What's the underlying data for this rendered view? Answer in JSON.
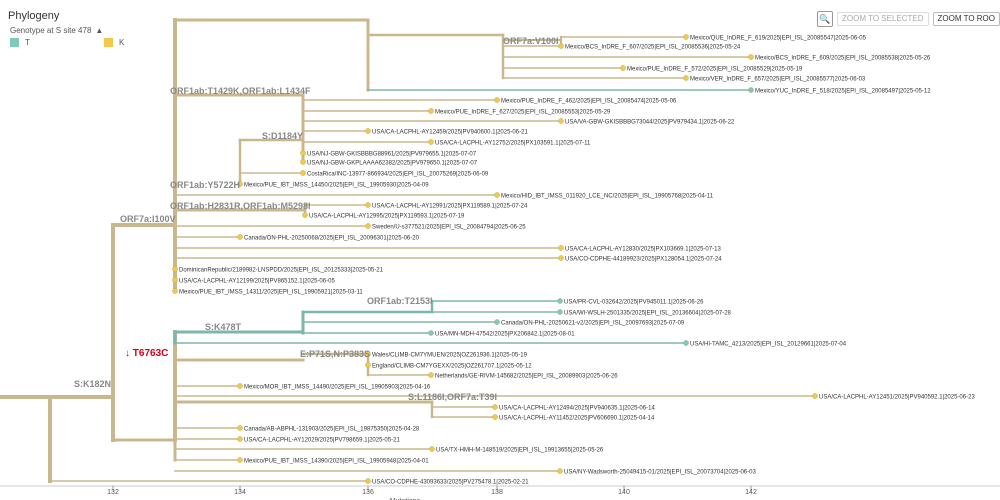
{
  "app": {
    "title": "Phylogeny"
  },
  "toolbar": {
    "zoom_selected": "ZOOM TO SELECTED",
    "zoom_root": "ZOOM TO ROO"
  },
  "legend": {
    "title": "Genotype at S site 478",
    "items": [
      {
        "label": "T",
        "color": "#7fc9ba"
      },
      {
        "label": "K",
        "color": "#f2c94c"
      }
    ]
  },
  "colors": {
    "branch": "#c9b88e",
    "branch_T": "#7fb6ac",
    "tip_K": "#f2c94c",
    "tip_T": "#7fc9ba",
    "mutation_red": "#d0021b"
  },
  "axis": {
    "ticks": [
      "132",
      "134",
      "136",
      "138",
      "140",
      "142"
    ],
    "label": "Mutations"
  },
  "branch_labels": [
    "ORF7a:V100I",
    "ORF1ab:T1429K,ORF1ab:L1434F",
    "S:D1184Y",
    "ORF1ab:Y5722H",
    "ORF1ab:H2831R,ORF1ab:M5298I",
    "ORF7a:I100V",
    "ORF1ab:T2153I",
    "S:K478T",
    "E:P71S,N:P383S",
    "S:L1186I,ORF7a:T39I",
    "S:K182N"
  ],
  "mutation_highlight": {
    "arrow": "↓",
    "label": "T6763C"
  },
  "tips": [
    "Mexico/QUE_InDRE_F_619/2025|EPI_ISL_20085547|2025-06-05",
    "Mexico/BCS_InDRE_F_607/2025|EPI_ISL_20085536|2025-05-24",
    "Mexico/BCS_InDRE_F_609/2025|EPI_ISL_20085538|2025-05-26",
    "Mexico/PUE_InDRE_F_572/2025|EPI_ISL_20085529|2025-05-19",
    "Mexico/VER_InDRE_F_657/2025|EPI_ISL_20085577|2025-06-03",
    "Mexico/YUC_InDRE_F_518/2025|EPI_ISL_20085497|2025-05-12",
    "Mexico/PUE_InDRE_F_462/2025|EPI_ISL_20085474|2025-05-06",
    "Mexico/PUE_InDRE_F_627/2025|EPI_ISL_20085553|2025-05-29",
    "USA/VA-GBW-GKISBBBG73044/2025|PV979434.1|2025-06-22",
    "USA/CA-LACPHL-AY12459/2025|PV940600.1|2025-06-21",
    "USA/CA-LACPHL-AY12752/2025|PX103591.1|2025-07-11",
    "USA/NJ-GBW-GKISBBBG88961/2025|PV979655.1|2025-07-07",
    "USA/NJ-GBW-GKPLAAAA62382/2025|PV979650.1|2025-07-07",
    "CostaRica/INC-13977-866934/2025|EPI_ISL_20075269|2025-06-09",
    "Mexico/PUE_IBT_IMSS_14450/2025|EPI_ISL_19905930|2025-04-09",
    "Mexico/HID_IBT_IMSS_011920_LCE_NC/2025|EPI_ISL_19905768|2025-04-11",
    "USA/CA-LACPHL-AY12991/2025|PX119589.1|2025-07-24",
    "USA/CA-LACPHL-AY12995/2025|PX119593.1|2025-07-19",
    "Sweden/U-s377521/2025|EPI_ISL_20084794|2025-06-25",
    "Canada/ON-PHL-20250068/2025|EPI_ISL_20096301|2025-06-20",
    "USA/CA-LACPHL-AY12830/2025|PX103669.1|2025-07-13",
    "USA/CO-CDPHE-44189923/2025|PX128054.1|2025-07-24",
    "DominicanRepublic/2189982-LNSPDD/2025|EPI_ISL_20125333|2025-05-21",
    "USA/CA-LACPHL-AY12199/2025|PV865152.1|2025-06-05",
    "Mexico/PUE_IBT_IMSS_14311/2025|EPI_ISL_19905921|2025-03-11",
    "USA/PR-CVL-032642/2025|PV945011.1|2025-06-26",
    "USA/WI-WSLH-2501335/2025|EPI_ISL_20136604|2025-07-28",
    "Canada/ON-PHL-20250621-v2/2025|EPI_ISL_20097693|2025-07-09",
    "USA/MN-MDH-47542/2025|PX206842.1|2025-08-01",
    "USA/HI-TAMC_4213/2025|EPI_ISL_20129661|2025-07-04",
    "Wales/CLIMB-CM7YMUEN/2025|OZ261936.1|2025-05-19",
    "England/CLIMB-CM7YGEXX/2025|OZ261707.1|2025-05-12",
    "Netherlands/GE-RIVM-145682/2025|EPI_ISL_20089903|2025-06-26",
    "Mexico/MOR_IBT_IMSS_14490/2025|EPI_ISL_19905903|2025-04-16",
    "USA/CA-LACPHL-AY12451/2025|PV940592.1|2025-06-23",
    "USA/CA-LACPHL-AY12494/2025|PV940635.1|2025-06-14",
    "USA/CA-LACPHL-AY11452/2025|PV606690.1|2025-04-14",
    "Canada/AB-ABPHL-131903/2025|EPI_ISL_19875350|2025-04-28",
    "USA/CA-LACPHL-AY12029/2025|PV798659.1|2025-05-21",
    "USA/TX-HMH-M-148519/2025|EPI_ISL_19913655|2025-05-26",
    "Mexico/PUE_IBT_IMSS_14390/2025|EPI_ISL_19905948|2025-04-01",
    "USA/NY-Wadsworth-25049415-01/2025|EPI_ISL_20073704|2025-06-03",
    "USA/CO-CDPHE-43093633/2025|PV275478.1|2025-02-21"
  ]
}
